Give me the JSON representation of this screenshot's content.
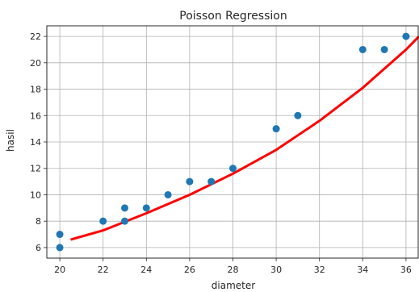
{
  "chart_data": {
    "type": "scatter",
    "title": "Poisson Regression",
    "xlabel": "diameter",
    "ylabel": "hasil",
    "xlim": [
      19.4,
      36.6
    ],
    "ylim": [
      5.2,
      22.8
    ],
    "xticks": [
      20,
      22,
      24,
      26,
      28,
      30,
      32,
      34,
      36
    ],
    "yticks": [
      6,
      8,
      10,
      12,
      14,
      16,
      18,
      20,
      22
    ],
    "grid": true,
    "points": {
      "color": "#1f77b4",
      "x": [
        20,
        20,
        22,
        23,
        23,
        24,
        25,
        26,
        27,
        28,
        30,
        31,
        34,
        35,
        36
      ],
      "y": [
        7,
        6,
        8,
        9,
        8,
        9,
        10,
        11,
        11,
        12,
        15,
        16,
        21,
        21,
        22
      ]
    },
    "curve": {
      "color": "#ff0000",
      "x": [
        20.5,
        22,
        24,
        26,
        28,
        30,
        32,
        34,
        36,
        36.6
      ],
      "y": [
        6.6,
        7.3,
        8.6,
        10.0,
        11.6,
        13.4,
        15.6,
        18.1,
        21.0,
        22.0
      ]
    }
  }
}
